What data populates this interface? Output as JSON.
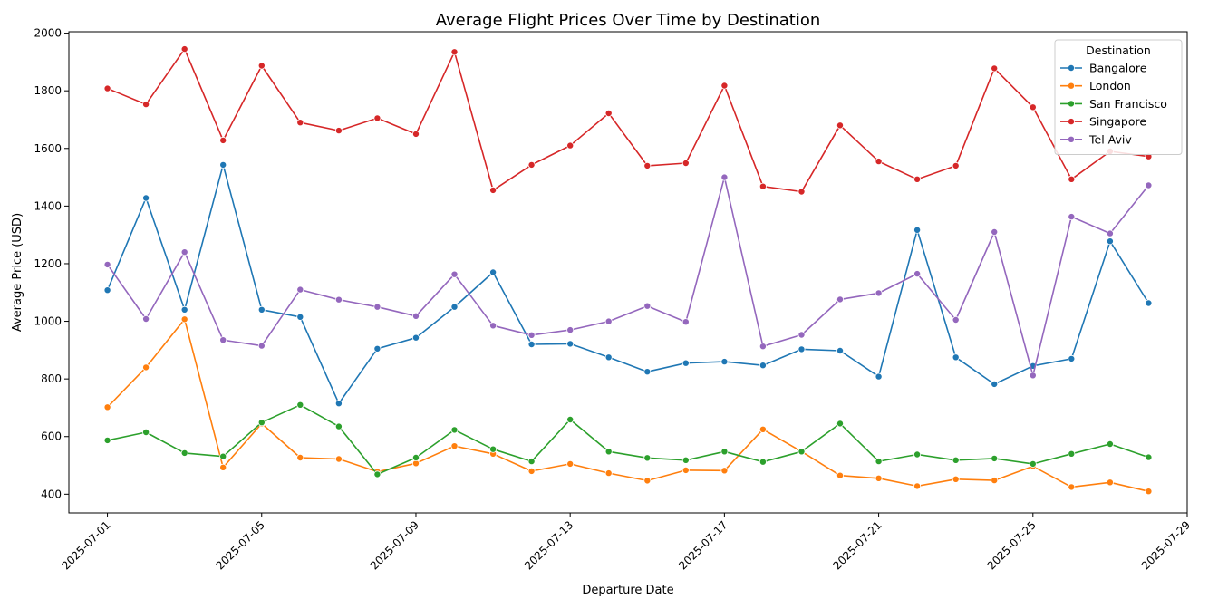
{
  "chart_data": {
    "type": "line",
    "title": "Average Flight Prices Over Time by Destination",
    "xlabel": "Departure Date",
    "ylabel": "Average Price (USD)",
    "x": [
      "2025-07-01",
      "2025-07-02",
      "2025-07-03",
      "2025-07-04",
      "2025-07-05",
      "2025-07-06",
      "2025-07-07",
      "2025-07-08",
      "2025-07-09",
      "2025-07-10",
      "2025-07-11",
      "2025-07-12",
      "2025-07-13",
      "2025-07-14",
      "2025-07-15",
      "2025-07-16",
      "2025-07-17",
      "2025-07-18",
      "2025-07-19",
      "2025-07-20",
      "2025-07-21",
      "2025-07-22",
      "2025-07-23",
      "2025-07-24",
      "2025-07-25",
      "2025-07-26",
      "2025-07-27",
      "2025-07-28"
    ],
    "x_ticks": [
      "2025-07-01",
      "2025-07-05",
      "2025-07-09",
      "2025-07-13",
      "2025-07-17",
      "2025-07-21",
      "2025-07-25",
      "2025-07-29"
    ],
    "xlim": [
      "2025-06-30",
      "2025-07-29"
    ],
    "y_ticks": [
      400,
      600,
      800,
      1000,
      1200,
      1400,
      1600,
      1800,
      2000
    ],
    "ylim": [
      335,
      2005
    ],
    "grid": false,
    "legend": {
      "title": "Destination",
      "position": "top-right"
    },
    "series": [
      {
        "name": "Bangalore",
        "color": "#1f77b4",
        "values": [
          1108,
          1428,
          1040,
          1543,
          1040,
          1015,
          715,
          905,
          943,
          1050,
          1170,
          920,
          922,
          875,
          825,
          855,
          860,
          847,
          903,
          898,
          808,
          1317,
          875,
          782,
          845,
          870,
          1278,
          1063
        ]
      },
      {
        "name": "London",
        "color": "#ff7f0e",
        "values": [
          702,
          840,
          1007,
          493,
          645,
          527,
          522,
          478,
          507,
          567,
          540,
          480,
          505,
          473,
          447,
          483,
          482,
          625,
          548,
          465,
          455,
          428,
          452,
          448,
          497,
          425,
          441,
          410
        ]
      },
      {
        "name": "San Francisco",
        "color": "#2ca02c",
        "values": [
          587,
          615,
          543,
          531,
          649,
          710,
          635,
          469,
          527,
          623,
          556,
          514,
          659,
          548,
          526,
          518,
          548,
          512,
          548,
          645,
          514,
          538,
          518,
          524,
          505,
          540,
          574,
          528
        ]
      },
      {
        "name": "Singapore",
        "color": "#d62728",
        "values": [
          1808,
          1753,
          1945,
          1628,
          1887,
          1690,
          1662,
          1705,
          1650,
          1935,
          1455,
          1543,
          1610,
          1722,
          1540,
          1549,
          1818,
          1468,
          1450,
          1680,
          1555,
          1493,
          1540,
          1878,
          1743,
          1493,
          1590,
          1572
        ]
      },
      {
        "name": "Tel Aviv",
        "color": "#9467bd",
        "values": [
          1197,
          1008,
          1240,
          935,
          915,
          1110,
          1075,
          1050,
          1018,
          1163,
          985,
          952,
          970,
          1000,
          1053,
          998,
          1500,
          913,
          953,
          1076,
          1098,
          1165,
          1005,
          1310,
          812,
          1363,
          1305,
          1472
        ]
      }
    ]
  }
}
